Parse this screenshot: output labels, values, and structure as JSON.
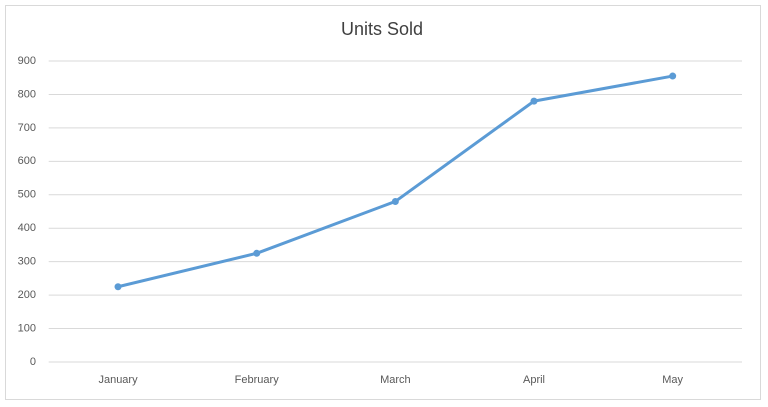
{
  "chart_data": {
    "type": "line",
    "title": "Units Sold",
    "categories": [
      "January",
      "February",
      "March",
      "April",
      "May"
    ],
    "values": [
      225,
      325,
      480,
      780,
      855
    ],
    "color": "#5b9bd5",
    "ylim": [
      0,
      900
    ],
    "yticks": [
      0,
      100,
      200,
      300,
      400,
      500,
      600,
      700,
      800,
      900
    ],
    "grid": true
  }
}
